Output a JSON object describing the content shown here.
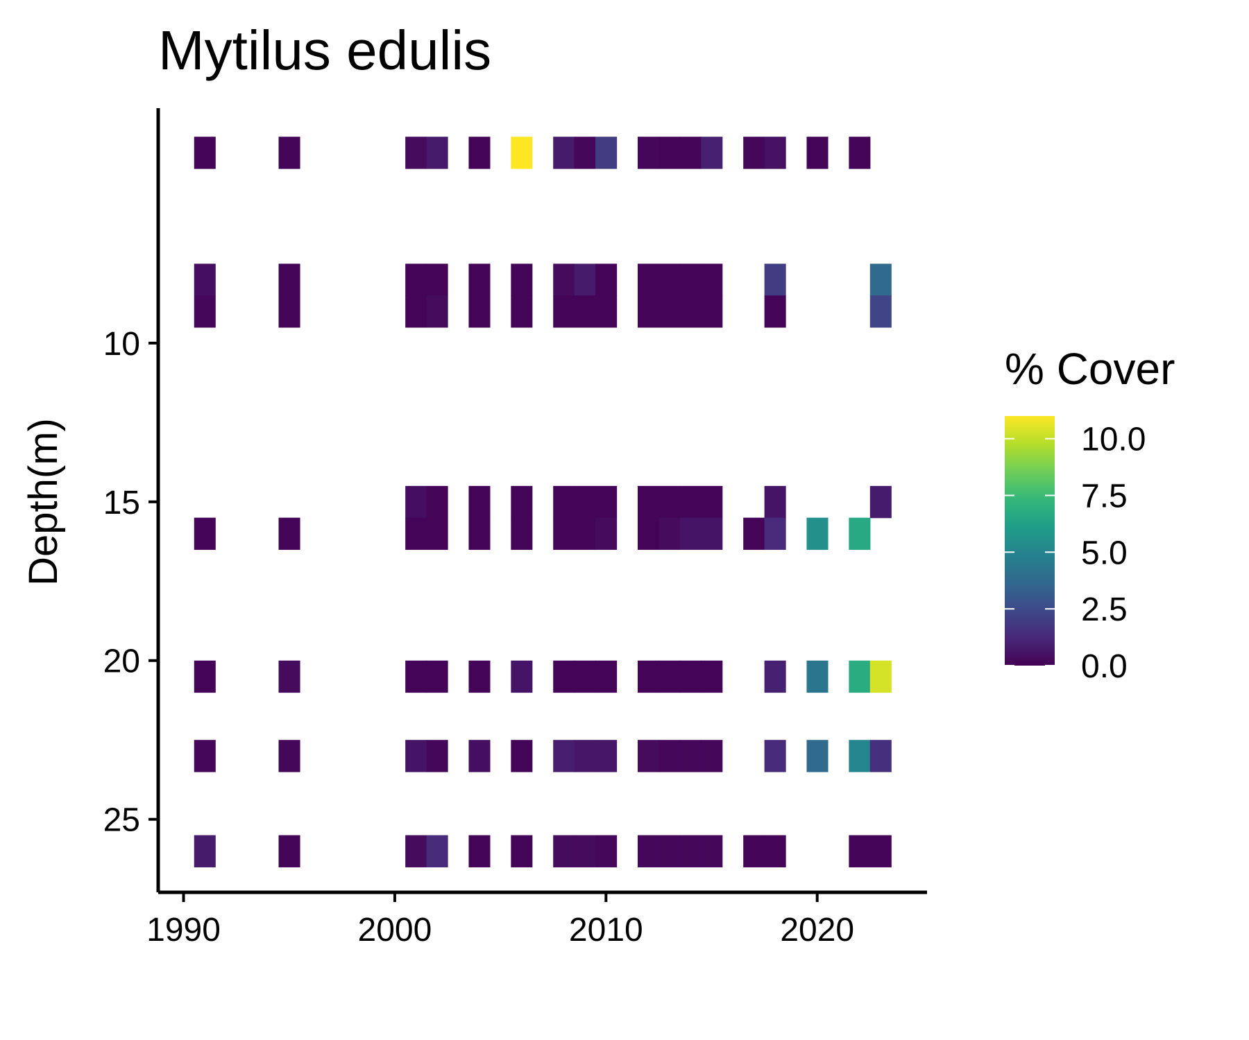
{
  "chart_data": {
    "type": "heatmap",
    "title": "Mytilus edulis",
    "xlabel": "",
    "ylabel": "Depth(m)",
    "x_ticks": [
      1990,
      2000,
      2010,
      2020
    ],
    "y_ticks": [
      10,
      15,
      20,
      25
    ],
    "xlim": [
      1988.8,
      2025.2
    ],
    "ylim": [
      27.3,
      2.6
    ],
    "y_reversed": true,
    "grid": false,
    "legend": {
      "title": "% Cover",
      "position": "right",
      "labels": [
        "10.0",
        "7.5",
        "5.0",
        "2.5",
        "0.0"
      ],
      "breaks": [
        10.0,
        7.5,
        5.0,
        2.5,
        0.0
      ],
      "range": [
        0.0,
        11.0
      ],
      "palette": "viridis",
      "colors": [
        "#440154",
        "#482878",
        "#3e4989",
        "#31688e",
        "#26828e",
        "#1f9e89",
        "#35b779",
        "#6ece58",
        "#b5de2b",
        "#fde725"
      ]
    },
    "cells": [
      {
        "x": 1991,
        "y": 4,
        "value": 0.1
      },
      {
        "x": 1995,
        "y": 4,
        "value": 0.1
      },
      {
        "x": 2001,
        "y": 4,
        "value": 0.3
      },
      {
        "x": 2002,
        "y": 4,
        "value": 0.8
      },
      {
        "x": 2004,
        "y": 4,
        "value": 0.1
      },
      {
        "x": 2006,
        "y": 4,
        "value": 11.0
      },
      {
        "x": 2008,
        "y": 4,
        "value": 0.8
      },
      {
        "x": 2009,
        "y": 4,
        "value": 0.2
      },
      {
        "x": 2010,
        "y": 4,
        "value": 2.0
      },
      {
        "x": 2012,
        "y": 4,
        "value": 0.2
      },
      {
        "x": 2013,
        "y": 4,
        "value": 0.1
      },
      {
        "x": 2014,
        "y": 4,
        "value": 0.1
      },
      {
        "x": 2015,
        "y": 4,
        "value": 1.0
      },
      {
        "x": 2017,
        "y": 4,
        "value": 0.2
      },
      {
        "x": 2018,
        "y": 4,
        "value": 0.5
      },
      {
        "x": 2020,
        "y": 4,
        "value": 0.1
      },
      {
        "x": 2022,
        "y": 4,
        "value": 0.1
      },
      {
        "x": 1991,
        "y": 8,
        "value": 0.4
      },
      {
        "x": 1995,
        "y": 8,
        "value": 0.1
      },
      {
        "x": 2001,
        "y": 8,
        "value": 0.1
      },
      {
        "x": 2002,
        "y": 8,
        "value": 0.1
      },
      {
        "x": 2004,
        "y": 8,
        "value": 0.1
      },
      {
        "x": 2006,
        "y": 8,
        "value": 0.1
      },
      {
        "x": 2008,
        "y": 8,
        "value": 0.3
      },
      {
        "x": 2009,
        "y": 8,
        "value": 0.8
      },
      {
        "x": 2010,
        "y": 8,
        "value": 0.1
      },
      {
        "x": 2012,
        "y": 8,
        "value": 0.1
      },
      {
        "x": 2013,
        "y": 8,
        "value": 0.1
      },
      {
        "x": 2014,
        "y": 8,
        "value": 0.1
      },
      {
        "x": 2015,
        "y": 8,
        "value": 0.1
      },
      {
        "x": 2018,
        "y": 8,
        "value": 2.0
      },
      {
        "x": 2023,
        "y": 8,
        "value": 3.8
      },
      {
        "x": 1991,
        "y": 9,
        "value": 0.2
      },
      {
        "x": 1995,
        "y": 9,
        "value": 0.1
      },
      {
        "x": 2001,
        "y": 9,
        "value": 0.1
      },
      {
        "x": 2002,
        "y": 9,
        "value": 0.3
      },
      {
        "x": 2004,
        "y": 9,
        "value": 0.1
      },
      {
        "x": 2006,
        "y": 9,
        "value": 0.1
      },
      {
        "x": 2008,
        "y": 9,
        "value": 0.1
      },
      {
        "x": 2009,
        "y": 9,
        "value": 0.1
      },
      {
        "x": 2010,
        "y": 9,
        "value": 0.1
      },
      {
        "x": 2012,
        "y": 9,
        "value": 0.1
      },
      {
        "x": 2013,
        "y": 9,
        "value": 0.1
      },
      {
        "x": 2014,
        "y": 9,
        "value": 0.1
      },
      {
        "x": 2015,
        "y": 9,
        "value": 0.1
      },
      {
        "x": 2018,
        "y": 9,
        "value": 0.1
      },
      {
        "x": 2023,
        "y": 9,
        "value": 2.3
      },
      {
        "x": 2001,
        "y": 15,
        "value": 0.4
      },
      {
        "x": 2002,
        "y": 15,
        "value": 0.1
      },
      {
        "x": 2004,
        "y": 15,
        "value": 0.1
      },
      {
        "x": 2006,
        "y": 15,
        "value": 0.1
      },
      {
        "x": 2008,
        "y": 15,
        "value": 0.1
      },
      {
        "x": 2009,
        "y": 15,
        "value": 0.1
      },
      {
        "x": 2010,
        "y": 15,
        "value": 0.1
      },
      {
        "x": 2012,
        "y": 15,
        "value": 0.1
      },
      {
        "x": 2013,
        "y": 15,
        "value": 0.1
      },
      {
        "x": 2014,
        "y": 15,
        "value": 0.1
      },
      {
        "x": 2015,
        "y": 15,
        "value": 0.1
      },
      {
        "x": 2018,
        "y": 15,
        "value": 0.6
      },
      {
        "x": 2023,
        "y": 15,
        "value": 0.8
      },
      {
        "x": 1991,
        "y": 16,
        "value": 0.1
      },
      {
        "x": 1995,
        "y": 16,
        "value": 0.1
      },
      {
        "x": 2001,
        "y": 16,
        "value": 0.1
      },
      {
        "x": 2002,
        "y": 16,
        "value": 0.1
      },
      {
        "x": 2004,
        "y": 16,
        "value": 0.1
      },
      {
        "x": 2006,
        "y": 16,
        "value": 0.1
      },
      {
        "x": 2008,
        "y": 16,
        "value": 0.1
      },
      {
        "x": 2009,
        "y": 16,
        "value": 0.1
      },
      {
        "x": 2010,
        "y": 16,
        "value": 0.3
      },
      {
        "x": 2012,
        "y": 16,
        "value": 0.1
      },
      {
        "x": 2013,
        "y": 16,
        "value": 0.3
      },
      {
        "x": 2014,
        "y": 16,
        "value": 0.6
      },
      {
        "x": 2015,
        "y": 16,
        "value": 0.6
      },
      {
        "x": 2017,
        "y": 16,
        "value": 0.1
      },
      {
        "x": 2018,
        "y": 16,
        "value": 1.3
      },
      {
        "x": 2020,
        "y": 16,
        "value": 5.5
      },
      {
        "x": 2022,
        "y": 16,
        "value": 6.6
      },
      {
        "x": 1991,
        "y": 20.5,
        "value": 0.1
      },
      {
        "x": 1995,
        "y": 20.5,
        "value": 0.3
      },
      {
        "x": 2001,
        "y": 20.5,
        "value": 0.1
      },
      {
        "x": 2002,
        "y": 20.5,
        "value": 0.1
      },
      {
        "x": 2004,
        "y": 20.5,
        "value": 0.1
      },
      {
        "x": 2006,
        "y": 20.5,
        "value": 0.6
      },
      {
        "x": 2008,
        "y": 20.5,
        "value": 0.1
      },
      {
        "x": 2009,
        "y": 20.5,
        "value": 0.1
      },
      {
        "x": 2010,
        "y": 20.5,
        "value": 0.1
      },
      {
        "x": 2012,
        "y": 20.5,
        "value": 0.1
      },
      {
        "x": 2013,
        "y": 20.5,
        "value": 0.1
      },
      {
        "x": 2014,
        "y": 20.5,
        "value": 0.1
      },
      {
        "x": 2015,
        "y": 20.5,
        "value": 0.1
      },
      {
        "x": 2018,
        "y": 20.5,
        "value": 1.0
      },
      {
        "x": 2020,
        "y": 20.5,
        "value": 4.3
      },
      {
        "x": 2022,
        "y": 20.5,
        "value": 6.8
      },
      {
        "x": 2023,
        "y": 20.5,
        "value": 10.3
      },
      {
        "x": 1991,
        "y": 23,
        "value": 0.2
      },
      {
        "x": 1995,
        "y": 23,
        "value": 0.2
      },
      {
        "x": 2001,
        "y": 23,
        "value": 0.6
      },
      {
        "x": 2002,
        "y": 23,
        "value": 0.2
      },
      {
        "x": 2004,
        "y": 23,
        "value": 0.4
      },
      {
        "x": 2006,
        "y": 23,
        "value": 0.1
      },
      {
        "x": 2008,
        "y": 23,
        "value": 0.9
      },
      {
        "x": 2009,
        "y": 23,
        "value": 0.7
      },
      {
        "x": 2010,
        "y": 23,
        "value": 0.7
      },
      {
        "x": 2012,
        "y": 23,
        "value": 0.3
      },
      {
        "x": 2013,
        "y": 23,
        "value": 0.2
      },
      {
        "x": 2014,
        "y": 23,
        "value": 0.2
      },
      {
        "x": 2015,
        "y": 23,
        "value": 0.2
      },
      {
        "x": 2018,
        "y": 23,
        "value": 1.3
      },
      {
        "x": 2020,
        "y": 23,
        "value": 3.8
      },
      {
        "x": 2022,
        "y": 23,
        "value": 5.0
      },
      {
        "x": 2023,
        "y": 23,
        "value": 1.5
      },
      {
        "x": 1991,
        "y": 26,
        "value": 0.8
      },
      {
        "x": 1995,
        "y": 26,
        "value": 0.1
      },
      {
        "x": 2001,
        "y": 26,
        "value": 0.3
      },
      {
        "x": 2002,
        "y": 26,
        "value": 1.3
      },
      {
        "x": 2004,
        "y": 26,
        "value": 0.1
      },
      {
        "x": 2006,
        "y": 26,
        "value": 0.1
      },
      {
        "x": 2008,
        "y": 26,
        "value": 0.3
      },
      {
        "x": 2009,
        "y": 26,
        "value": 0.3
      },
      {
        "x": 2010,
        "y": 26,
        "value": 0.2
      },
      {
        "x": 2012,
        "y": 26,
        "value": 0.2
      },
      {
        "x": 2013,
        "y": 26,
        "value": 0.2
      },
      {
        "x": 2014,
        "y": 26,
        "value": 0.2
      },
      {
        "x": 2015,
        "y": 26,
        "value": 0.2
      },
      {
        "x": 2017,
        "y": 26,
        "value": 0.1
      },
      {
        "x": 2018,
        "y": 26,
        "value": 0.1
      },
      {
        "x": 2022,
        "y": 26,
        "value": 0.1
      },
      {
        "x": 2023,
        "y": 26,
        "value": 0.1
      }
    ]
  }
}
